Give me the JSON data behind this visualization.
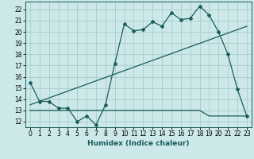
{
  "xlabel": "Humidex (Indice chaleur)",
  "background_color": "#cce8e8",
  "grid_color": "#aacccc",
  "line_color": "#1a5c5c",
  "xlim": [
    -0.5,
    23.5
  ],
  "ylim": [
    11.5,
    22.7
  ],
  "yticks": [
    12,
    13,
    14,
    15,
    16,
    17,
    18,
    19,
    20,
    21,
    22
  ],
  "xticks": [
    0,
    1,
    2,
    3,
    4,
    5,
    6,
    7,
    8,
    9,
    10,
    11,
    12,
    13,
    14,
    15,
    16,
    17,
    18,
    19,
    20,
    21,
    22,
    23
  ],
  "line1_x": [
    0,
    1,
    2,
    3,
    4,
    5,
    6,
    7,
    8,
    9,
    10,
    11,
    12,
    13,
    14,
    15,
    16,
    17,
    18,
    19,
    20,
    21,
    22,
    23
  ],
  "line1_y": [
    15.5,
    13.8,
    13.8,
    13.2,
    13.2,
    12.0,
    12.5,
    11.7,
    13.5,
    17.2,
    20.7,
    20.1,
    20.2,
    20.9,
    20.5,
    21.7,
    21.1,
    21.2,
    22.3,
    21.5,
    20.0,
    18.0,
    14.9,
    12.5
  ],
  "line2_x": [
    0,
    1,
    2,
    3,
    4,
    5,
    6,
    7,
    8,
    9,
    10,
    11,
    12,
    13,
    14,
    15,
    16,
    17,
    18,
    19,
    20,
    21,
    22,
    23
  ],
  "line2_y": [
    13.0,
    13.0,
    13.0,
    13.0,
    13.0,
    13.0,
    13.0,
    13.0,
    13.0,
    13.0,
    13.0,
    13.0,
    13.0,
    13.0,
    13.0,
    13.0,
    13.0,
    13.0,
    13.0,
    12.5,
    12.5,
    12.5,
    12.5,
    12.5
  ],
  "line3_x": [
    0,
    23
  ],
  "line3_y": [
    13.5,
    20.5
  ],
  "tick_fontsize": 5.5,
  "xlabel_fontsize": 6.5
}
